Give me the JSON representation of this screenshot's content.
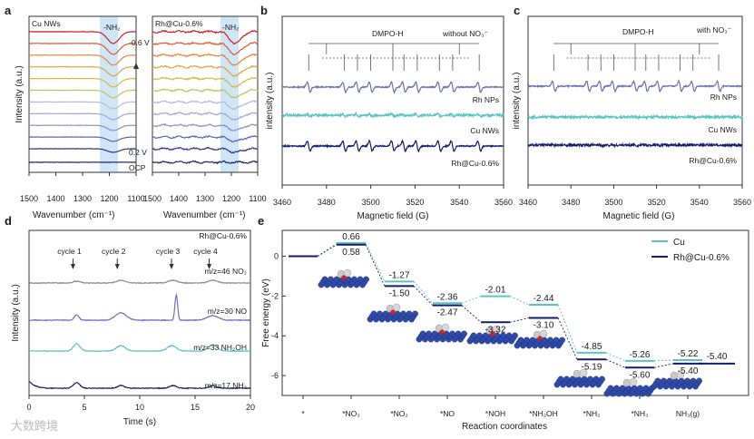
{
  "panels": {
    "a": "a",
    "b": "b",
    "c": "c",
    "d": "d",
    "e": "e"
  },
  "chart_data": [
    {
      "id": "a_left",
      "type": "line",
      "title": "Cu NWs",
      "band_label": "-NH₂",
      "band_range": [
        1210,
        1160
      ],
      "xlabel": "Wavenumber (cm⁻¹)",
      "ylabel": "Intensity (a.u.)",
      "xlim": [
        1500,
        1100
      ],
      "xticks": [
        1500,
        1400,
        1300,
        1200,
        1100
      ],
      "annotations": [
        "-0.6 V",
        "0.2 V",
        "OCP"
      ],
      "series_colors": [
        "#cc1f1f",
        "#e05a2a",
        "#e8863a",
        "#e8a23c",
        "#d8b83f",
        "#c6c25a",
        "#b8b8d8",
        "#a0a8de",
        "#8890d6",
        "#5a66bb",
        "#2a3590",
        "#1c2366"
      ]
    },
    {
      "id": "a_right",
      "type": "line",
      "title": "Rh@Cu-0.6%",
      "band_label": "-NH₂",
      "band_range": [
        1210,
        1160
      ],
      "xlabel": "Wavenumber (cm⁻¹)",
      "xlim": [
        1500,
        1100
      ],
      "xticks": [
        1500,
        1400,
        1300,
        1200,
        1100
      ]
    },
    {
      "id": "b",
      "type": "line",
      "title": "DMPO-H",
      "condition": "without NO₃⁻",
      "xlabel": "Magnetic field (G)",
      "ylabel": "intensity (a.u.)",
      "xlim": [
        3460,
        3560
      ],
      "xticks": [
        3460,
        3480,
        3500,
        3520,
        3540,
        3560
      ],
      "series": [
        {
          "name": "Rh NPs",
          "color": "#6b6fb8"
        },
        {
          "name": "Cu NWs",
          "color": "#5bc4c0"
        },
        {
          "name": "Rh@Cu-0.6%",
          "color": "#131c6e"
        }
      ]
    },
    {
      "id": "c",
      "type": "line",
      "title": "DMPO-H",
      "condition": "with NO₃⁻",
      "xlabel": "Magnetic field (G)",
      "ylabel": "intensity (a.u.)",
      "xlim": [
        3460,
        3560
      ],
      "xticks": [
        3460,
        3480,
        3500,
        3520,
        3540,
        3560
      ],
      "series": [
        {
          "name": "Rh NPs",
          "color": "#6b6fb8"
        },
        {
          "name": "Cu NWs",
          "color": "#5bc4c0"
        },
        {
          "name": "Rh@Cu-0.6%",
          "color": "#131c6e"
        }
      ]
    },
    {
      "id": "d",
      "type": "line",
      "title": "Rh@Cu-0.6%",
      "xlabel": "Time (s)",
      "ylabel": "Intensity (a.u.)",
      "xlim": [
        0,
        20
      ],
      "xticks": [
        0,
        5,
        10,
        15,
        20
      ],
      "cycles": [
        {
          "label": "cycle 1",
          "t": 4.3
        },
        {
          "label": "cycle 2",
          "t": 8.3
        },
        {
          "label": "cycle 3",
          "t": 13.2
        },
        {
          "label": "cycle 4",
          "t": 16.6
        }
      ],
      "series": [
        {
          "name": "m/z=46 NO₂",
          "color": "#8a8a8a"
        },
        {
          "name": "m/z=30 NO",
          "color": "#6b6fb8"
        },
        {
          "name": "m/z=33 NH₂OH",
          "color": "#5bc4c0"
        },
        {
          "name": "m/z=17 NH₃",
          "color": "#131c6e"
        }
      ]
    },
    {
      "id": "e",
      "type": "line",
      "xlabel": "Reaction coordinates",
      "ylabel": "Free energy (eV)",
      "ylim": [
        -7,
        1.3
      ],
      "yticks": [
        0,
        -2,
        -4,
        -6
      ],
      "categories": [
        "*",
        "*NO₃",
        "*NO₂",
        "*NO",
        "*NOH",
        "*NH₂OH",
        "*NH₂",
        "*NH₃",
        "NH₃(g)"
      ],
      "series": [
        {
          "name": "Cu",
          "color": "#5bc4c0",
          "values": [
            0,
            0.66,
            -1.27,
            -2.36,
            -2.01,
            -2.44,
            -4.85,
            -5.26,
            -5.22
          ],
          "labels": [
            "",
            "0.66",
            "-1.27",
            "-2.36",
            "-2.01",
            "-2.44",
            "-4.85",
            "-5.26",
            "-5.22"
          ]
        },
        {
          "name": "Rh@Cu-0.6%",
          "color": "#131c6e",
          "values": [
            0,
            0.58,
            -1.5,
            -2.47,
            -3.32,
            -3.1,
            -5.19,
            -5.6,
            -5.4
          ],
          "labels": [
            "",
            "0.58",
            "-1.50",
            "-2.47",
            "-3.32",
            "-3.10",
            "-5.19",
            "-5.60",
            "-5.40"
          ]
        }
      ],
      "final_label": "-5.40"
    }
  ],
  "watermark": "大数跨境"
}
